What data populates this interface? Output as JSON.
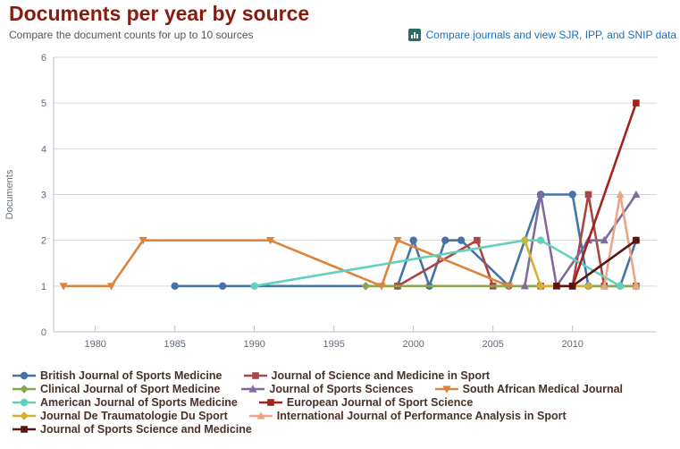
{
  "header": {
    "title": "Documents per year by source",
    "subtitle": "Compare the document counts for up to 10 sources",
    "link_label": "Compare journals and view SJR, IPP, and SNIP data"
  },
  "colors": {
    "title": "#8b1a0e",
    "subtitle": "#54565b",
    "link": "#1a70b8",
    "link_icon_bg": "#2b6e5f",
    "legend_text": "#4a3128",
    "grid": "#d6d6d6",
    "axis": "#b9c2ce",
    "tick_label": "#5f6b78",
    "axis_title": "#6a737c"
  },
  "chart_data": {
    "type": "line",
    "title": "",
    "xlabel": "",
    "ylabel": "Documents",
    "xlim": [
      1977.4,
      2015.3
    ],
    "ylim": [
      0,
      6
    ],
    "grid": "horizontal-only",
    "x_ticks": [
      1980,
      1985,
      1990,
      1995,
      2000,
      2005,
      2010
    ],
    "y_ticks": [
      0,
      1,
      2,
      3,
      4,
      5,
      6
    ],
    "legend_position": "bottom-left",
    "legend_rows": [
      [
        0,
        1
      ],
      [
        2,
        3,
        4
      ],
      [
        5,
        6
      ],
      [
        7,
        8
      ],
      [
        9
      ]
    ],
    "series": [
      {
        "name": "British Journal of Sports Medicine",
        "color": "#4572a7",
        "marker": "circle",
        "points": [
          [
            1985,
            1
          ],
          [
            1988,
            1
          ],
          [
            1999,
            1
          ],
          [
            2000,
            2
          ],
          [
            2001,
            1
          ],
          [
            2002,
            2
          ],
          [
            2003,
            2
          ],
          [
            2006,
            1
          ],
          [
            2008,
            3
          ],
          [
            2010,
            3
          ],
          [
            2011,
            1
          ],
          [
            2013,
            1
          ],
          [
            2014,
            2
          ]
        ]
      },
      {
        "name": "Journal of Science and Medicine in Sport",
        "color": "#aa4643",
        "marker": "square",
        "points": [
          [
            1999,
            1
          ],
          [
            2004,
            2
          ],
          [
            2005,
            1
          ],
          [
            2008,
            1
          ],
          [
            2010,
            1
          ],
          [
            2011,
            3
          ],
          [
            2012,
            1
          ],
          [
            2014,
            1
          ]
        ]
      },
      {
        "name": "Clinical Journal of Sport Medicine",
        "color": "#89a54e",
        "marker": "diamond",
        "points": [
          [
            1997,
            1
          ],
          [
            2014,
            1
          ]
        ]
      },
      {
        "name": "Journal of Sports Sciences",
        "color": "#80699b",
        "marker": "triangle",
        "points": [
          [
            2007,
            1
          ],
          [
            2008,
            3
          ],
          [
            2009,
            1
          ],
          [
            2011,
            2
          ],
          [
            2012,
            2
          ],
          [
            2014,
            3
          ]
        ]
      },
      {
        "name": "South African Medical Journal",
        "color": "#db843d",
        "marker": "triangle-down",
        "points": [
          [
            1978,
            1
          ],
          [
            1981,
            1
          ],
          [
            1983,
            2
          ],
          [
            1991,
            2
          ],
          [
            1998,
            1
          ],
          [
            1999,
            2
          ],
          [
            2006,
            1
          ]
        ]
      },
      {
        "name": "American Journal of Sports Medicine",
        "color": "#63d0bd",
        "marker": "circle",
        "points": [
          [
            1990,
            1
          ],
          [
            2007,
            2
          ],
          [
            2008,
            2
          ],
          [
            2013,
            1
          ]
        ]
      },
      {
        "name": "European Journal of Sport Science",
        "color": "#a1241c",
        "marker": "square",
        "points": [
          [
            2010,
            1
          ],
          [
            2014,
            5
          ]
        ]
      },
      {
        "name": "Journal De Traumatologie Du Sport",
        "color": "#d1b235",
        "marker": "diamond",
        "points": [
          [
            2007,
            2
          ],
          [
            2008,
            1
          ],
          [
            2011,
            1
          ]
        ]
      },
      {
        "name": "International Journal of Performance Analysis in Sport",
        "color": "#eda584",
        "marker": "triangle",
        "points": [
          [
            2012,
            1
          ],
          [
            2013,
            3
          ],
          [
            2014,
            1
          ]
        ]
      },
      {
        "name": "Journal of Sports Science and Medicine",
        "color": "#5c1410",
        "marker": "square",
        "points": [
          [
            2009,
            1
          ],
          [
            2010,
            1
          ],
          [
            2014,
            2
          ]
        ]
      }
    ]
  }
}
